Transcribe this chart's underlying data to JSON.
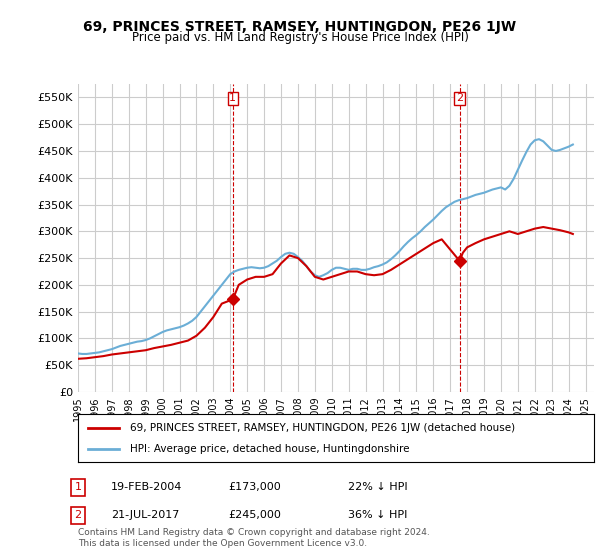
{
  "title": "69, PRINCES STREET, RAMSEY, HUNTINGDON, PE26 1JW",
  "subtitle": "Price paid vs. HM Land Registry's House Price Index (HPI)",
  "ylim": [
    0,
    575000
  ],
  "yticks": [
    0,
    50000,
    100000,
    150000,
    200000,
    250000,
    300000,
    350000,
    400000,
    450000,
    500000,
    550000
  ],
  "hpi_color": "#6baed6",
  "price_color": "#cc0000",
  "background_color": "#ffffff",
  "grid_color": "#cccccc",
  "legend_label_price": "69, PRINCES STREET, RAMSEY, HUNTINGDON, PE26 1JW (detached house)",
  "legend_label_hpi": "HPI: Average price, detached house, Huntingdonshire",
  "annotation1_label": "1",
  "annotation1_date": "19-FEB-2004",
  "annotation1_price": "£173,000",
  "annotation1_pct": "22% ↓ HPI",
  "annotation2_label": "2",
  "annotation2_date": "21-JUL-2017",
  "annotation2_price": "£245,000",
  "annotation2_pct": "36% ↓ HPI",
  "footnote": "Contains HM Land Registry data © Crown copyright and database right 2024.\nThis data is licensed under the Open Government Licence v3.0.",
  "hpi_data": {
    "years": [
      1995.0,
      1995.25,
      1995.5,
      1995.75,
      1996.0,
      1996.25,
      1996.5,
      1996.75,
      1997.0,
      1997.25,
      1997.5,
      1997.75,
      1998.0,
      1998.25,
      1998.5,
      1998.75,
      1999.0,
      1999.25,
      1999.5,
      1999.75,
      2000.0,
      2000.25,
      2000.5,
      2000.75,
      2001.0,
      2001.25,
      2001.5,
      2001.75,
      2002.0,
      2002.25,
      2002.5,
      2002.75,
      2003.0,
      2003.25,
      2003.5,
      2003.75,
      2004.0,
      2004.25,
      2004.5,
      2004.75,
      2005.0,
      2005.25,
      2005.5,
      2005.75,
      2006.0,
      2006.25,
      2006.5,
      2006.75,
      2007.0,
      2007.25,
      2007.5,
      2007.75,
      2008.0,
      2008.25,
      2008.5,
      2008.75,
      2009.0,
      2009.25,
      2009.5,
      2009.75,
      2010.0,
      2010.25,
      2010.5,
      2010.75,
      2011.0,
      2011.25,
      2011.5,
      2011.75,
      2012.0,
      2012.25,
      2012.5,
      2012.75,
      2013.0,
      2013.25,
      2013.5,
      2013.75,
      2014.0,
      2014.25,
      2014.5,
      2014.75,
      2015.0,
      2015.25,
      2015.5,
      2015.75,
      2016.0,
      2016.25,
      2016.5,
      2016.75,
      2017.0,
      2017.25,
      2017.5,
      2017.75,
      2018.0,
      2018.25,
      2018.5,
      2018.75,
      2019.0,
      2019.25,
      2019.5,
      2019.75,
      2020.0,
      2020.25,
      2020.5,
      2020.75,
      2021.0,
      2021.25,
      2021.5,
      2021.75,
      2022.0,
      2022.25,
      2022.5,
      2022.75,
      2023.0,
      2023.25,
      2023.5,
      2023.75,
      2024.0,
      2024.25
    ],
    "values": [
      72000,
      71000,
      71000,
      72000,
      73000,
      74000,
      76000,
      78000,
      80000,
      83000,
      86000,
      88000,
      90000,
      92000,
      94000,
      95000,
      97000,
      100000,
      104000,
      108000,
      112000,
      115000,
      117000,
      119000,
      121000,
      124000,
      128000,
      133000,
      140000,
      150000,
      160000,
      170000,
      180000,
      190000,
      200000,
      210000,
      220000,
      225000,
      228000,
      230000,
      232000,
      233000,
      232000,
      231000,
      232000,
      235000,
      240000,
      245000,
      252000,
      258000,
      260000,
      258000,
      252000,
      245000,
      235000,
      225000,
      218000,
      215000,
      218000,
      222000,
      228000,
      232000,
      232000,
      230000,
      228000,
      230000,
      230000,
      228000,
      228000,
      230000,
      233000,
      235000,
      238000,
      242000,
      248000,
      255000,
      263000,
      272000,
      280000,
      287000,
      293000,
      300000,
      308000,
      315000,
      322000,
      330000,
      338000,
      345000,
      350000,
      355000,
      358000,
      360000,
      362000,
      365000,
      368000,
      370000,
      372000,
      375000,
      378000,
      380000,
      382000,
      378000,
      385000,
      398000,
      415000,
      432000,
      448000,
      462000,
      470000,
      472000,
      468000,
      460000,
      452000,
      450000,
      452000,
      455000,
      458000,
      462000
    ]
  },
  "price_data": {
    "years": [
      1995.0,
      1995.5,
      1996.0,
      1996.5,
      1997.0,
      1997.5,
      1998.0,
      1998.5,
      1999.0,
      1999.5,
      2000.0,
      2000.5,
      2001.0,
      2001.5,
      2002.0,
      2002.5,
      2003.0,
      2003.5,
      2004.15,
      2004.5,
      2005.0,
      2005.5,
      2006.0,
      2006.5,
      2007.0,
      2007.5,
      2008.0,
      2008.5,
      2009.0,
      2009.5,
      2010.0,
      2010.5,
      2011.0,
      2011.5,
      2012.0,
      2012.5,
      2013.0,
      2013.5,
      2014.0,
      2014.5,
      2015.0,
      2015.5,
      2016.0,
      2016.5,
      2017.55,
      2017.75,
      2018.0,
      2018.5,
      2019.0,
      2019.5,
      2020.0,
      2020.5,
      2021.0,
      2021.5,
      2022.0,
      2022.5,
      2023.0,
      2023.5,
      2024.0,
      2024.25
    ],
    "values": [
      62000,
      63000,
      65000,
      67000,
      70000,
      72000,
      74000,
      76000,
      78000,
      82000,
      85000,
      88000,
      92000,
      96000,
      105000,
      120000,
      140000,
      165000,
      173000,
      200000,
      210000,
      215000,
      215000,
      220000,
      240000,
      255000,
      250000,
      235000,
      215000,
      210000,
      215000,
      220000,
      225000,
      225000,
      220000,
      218000,
      220000,
      228000,
      238000,
      248000,
      258000,
      268000,
      278000,
      285000,
      245000,
      260000,
      270000,
      278000,
      285000,
      290000,
      295000,
      300000,
      295000,
      300000,
      305000,
      308000,
      305000,
      302000,
      298000,
      295000
    ]
  },
  "sale_points": [
    {
      "year": 2004.15,
      "price": 173000,
      "label": "1"
    },
    {
      "year": 2017.55,
      "price": 245000,
      "label": "2"
    }
  ]
}
